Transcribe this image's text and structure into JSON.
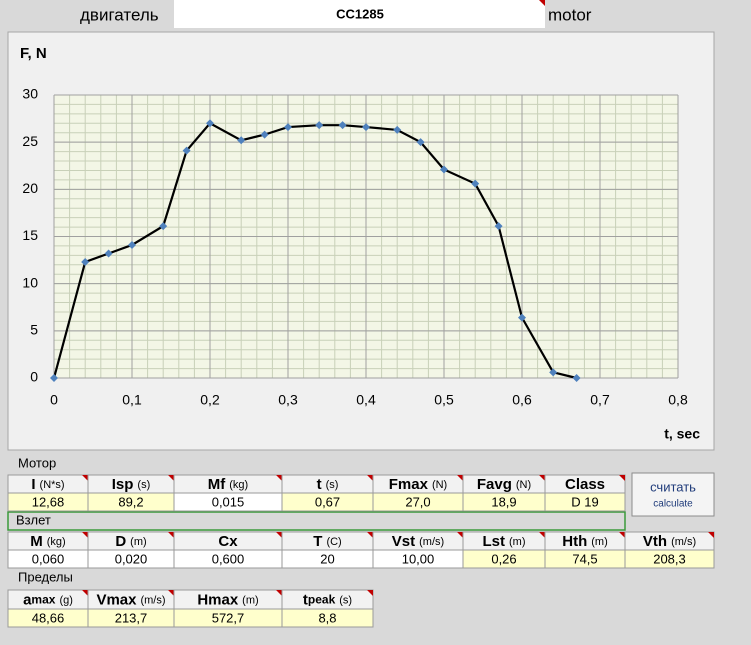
{
  "header": {
    "label_ru": "двигатель",
    "motor_name": "CC1285",
    "label_en": "motor"
  },
  "chart_data": {
    "type": "line",
    "y_label": "F, N",
    "x_label": "t, sec",
    "x": [
      0,
      0.04,
      0.07,
      0.1,
      0.14,
      0.17,
      0.2,
      0.24,
      0.27,
      0.3,
      0.34,
      0.37,
      0.4,
      0.44,
      0.47,
      0.5,
      0.54,
      0.57,
      0.6,
      0.64,
      0.67
    ],
    "values": [
      0,
      12.3,
      13.2,
      14.1,
      16.1,
      24.1,
      27.0,
      25.2,
      25.8,
      26.6,
      26.8,
      26.8,
      26.6,
      26.3,
      25.0,
      22.1,
      20.6,
      16.1,
      6.4,
      0.6,
      0
    ],
    "color": "#000000",
    "marker_color": "#4f81bd",
    "xlim": [
      0,
      0.8
    ],
    "ylim": [
      0,
      30
    ],
    "xticks": [
      0,
      {
        "value": 0.1,
        "label": "0,1"
      },
      {
        "value": 0.2,
        "label": "0,2"
      },
      {
        "value": 0.3,
        "label": "0,3"
      },
      {
        "value": 0.4,
        "label": "0,4"
      },
      {
        "value": 0.5,
        "label": "0,5"
      },
      {
        "value": 0.6,
        "label": "0,6"
      },
      {
        "value": 0.7,
        "label": "0,7"
      },
      {
        "value": 0.8,
        "label": "0,8"
      }
    ],
    "yticks": [
      0,
      5,
      10,
      15,
      20,
      25,
      30
    ],
    "grid": true,
    "minor_grid": true
  },
  "motor": {
    "title": "Мотор",
    "columns": [
      {
        "name": "I",
        "unit": "(N*s)"
      },
      {
        "name": "Isp",
        "unit": "(s)"
      },
      {
        "name": "Mf",
        "unit": "(kg)"
      },
      {
        "name": "t",
        "unit": "(s)"
      },
      {
        "name": "Fmax",
        "unit": "(N)"
      },
      {
        "name": "Favg",
        "unit": "(N)"
      },
      {
        "name": "Class"
      }
    ],
    "values": [
      "12,68",
      "89,2",
      "0,015",
      "0,67",
      "27,0",
      "18,9",
      "D 19"
    ],
    "value_colors": [
      "#ffffcc",
      "#ffffcc",
      "#ffffff",
      "#ffffcc",
      "#ffffcc",
      "#ffffcc",
      "#ffffcc"
    ]
  },
  "button": {
    "label": "считать",
    "sublabel": "calculate"
  },
  "launch": {
    "title": "Взлет",
    "columns": [
      {
        "name": "M",
        "unit": "(kg)"
      },
      {
        "name": "D",
        "unit": "(m)"
      },
      {
        "name": "Cx"
      },
      {
        "name": "T",
        "unit": "(C)"
      },
      {
        "name": "Vst",
        "unit": "(m/s)"
      },
      {
        "name": "Lst",
        "unit": "(m)"
      },
      {
        "name": "Hth",
        "unit": "(m)"
      },
      {
        "name": "Vth",
        "unit": "(m/s)"
      }
    ],
    "values": [
      "0,060",
      "0,020",
      "0,600",
      "20",
      "10,00",
      "0,26",
      "74,5",
      "208,3"
    ],
    "value_colors": [
      "#ffffff",
      "#ffffff",
      "#ffffff",
      "#ffffff",
      "#ffffff",
      "#ffffcc",
      "#ffffcc",
      "#ffffcc"
    ]
  },
  "limits": {
    "title": "Пределы",
    "columns": [
      {
        "name": "a",
        "sub": "max",
        "unit": "(g)"
      },
      {
        "name": "Vmax",
        "unit": "(m/s)"
      },
      {
        "name": "Hmax",
        "unit": "(m)"
      },
      {
        "name": "t",
        "sub": "peak",
        "unit": "(s)"
      }
    ],
    "values": [
      "48,66",
      "213,7",
      "572,7",
      "8,8"
    ],
    "value_colors": [
      "#ffffcc",
      "#ffffcc",
      "#ffffcc",
      "#ffffcc"
    ]
  }
}
